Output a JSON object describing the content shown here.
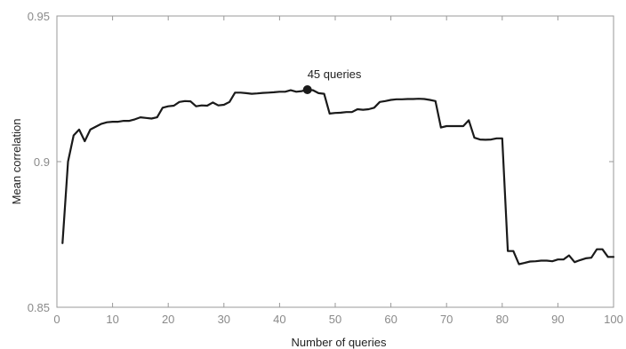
{
  "chart_data": {
    "type": "line",
    "title": "",
    "xlabel": "Number of queries",
    "ylabel": "Mean correlation",
    "xlim": [
      0,
      100
    ],
    "ylim": [
      0.85,
      0.95
    ],
    "xticks": [
      0,
      10,
      20,
      30,
      40,
      50,
      60,
      70,
      80,
      90,
      100
    ],
    "xtick_labels": [
      "0",
      "10",
      "20",
      "30",
      "40",
      "50",
      "60",
      "70",
      "80",
      "90",
      "100"
    ],
    "yticks": [
      0.85,
      0.9,
      0.95
    ],
    "ytick_labels": [
      "0.85",
      "0.9",
      "0.95"
    ],
    "grid": false,
    "line_color": "#1a1a1a",
    "axis_color": "#999999",
    "series": [
      {
        "x": [
          1,
          2,
          3,
          4,
          5,
          6,
          7,
          8,
          9,
          10,
          11,
          12,
          13,
          14,
          15,
          16,
          17,
          18,
          19,
          20,
          21,
          22,
          23,
          24,
          25,
          26,
          27,
          28,
          29,
          30,
          31,
          32,
          33,
          34,
          35,
          36,
          37,
          38,
          39,
          40,
          41,
          42,
          43,
          44,
          45,
          46,
          47,
          48,
          49,
          50,
          51,
          52,
          53,
          54,
          55,
          56,
          57,
          58,
          59,
          60,
          61,
          62,
          63,
          64,
          65,
          66,
          67,
          68,
          69,
          70,
          71,
          72,
          73,
          74,
          75,
          76,
          77,
          78,
          79,
          80,
          81,
          82,
          83,
          84,
          85,
          86,
          87,
          88,
          89,
          90,
          91,
          92,
          93,
          94,
          95,
          96,
          97,
          98,
          99,
          100
        ],
        "y": [
          0.872,
          0.9,
          0.909,
          0.911,
          0.907,
          0.911,
          0.912,
          0.913,
          0.9135,
          0.9137,
          0.9137,
          0.914,
          0.914,
          0.9145,
          0.9152,
          0.915,
          0.9148,
          0.9152,
          0.9185,
          0.919,
          0.9192,
          0.9205,
          0.9208,
          0.9207,
          0.919,
          0.9193,
          0.9192,
          0.9203,
          0.9193,
          0.9195,
          0.9205,
          0.9237,
          0.9237,
          0.9235,
          0.9233,
          0.9234,
          0.9236,
          0.9237,
          0.9238,
          0.924,
          0.924,
          0.9245,
          0.924,
          0.9242,
          0.9247,
          0.9245,
          0.9235,
          0.9233,
          0.9165,
          0.9167,
          0.9168,
          0.917,
          0.917,
          0.918,
          0.9178,
          0.918,
          0.9185,
          0.9205,
          0.9208,
          0.9212,
          0.9214,
          0.9214,
          0.9215,
          0.9215,
          0.9216,
          0.9215,
          0.9212,
          0.9208,
          0.9117,
          0.9122,
          0.9122,
          0.9122,
          0.9122,
          0.9142,
          0.9082,
          0.9076,
          0.9075,
          0.9076,
          0.908,
          0.908,
          0.8693,
          0.8693,
          0.8648,
          0.8652,
          0.8657,
          0.8658,
          0.866,
          0.866,
          0.8658,
          0.8664,
          0.8664,
          0.8678,
          0.8655,
          0.8662,
          0.8668,
          0.867,
          0.8699,
          0.8699,
          0.8673,
          0.8673
        ]
      }
    ],
    "annotations": [
      {
        "x": 45,
        "y": 0.9247,
        "text": "45 queries"
      }
    ]
  }
}
